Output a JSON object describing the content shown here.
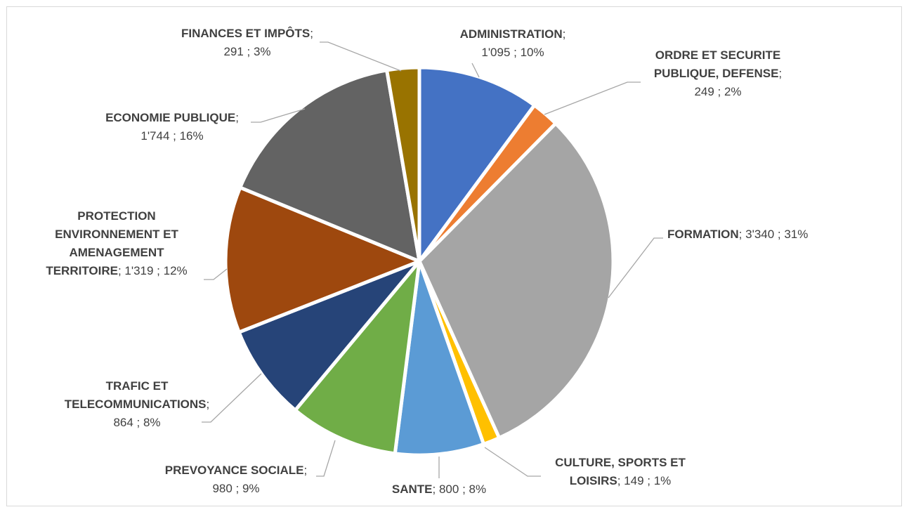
{
  "chart_data": {
    "type": "pie",
    "title": "",
    "slices": [
      {
        "name": "ADMINISTRATION",
        "value": 1095,
        "value_label": "1'095",
        "pct_label": "10%",
        "color": "#4472C4"
      },
      {
        "name": "ORDRE ET SECURITE PUBLIQUE, DEFENSE",
        "value": 249,
        "value_label": "249",
        "pct_label": "2%",
        "color": "#ED7D31"
      },
      {
        "name": "FORMATION",
        "value": 3340,
        "value_label": "3'340",
        "pct_label": "31%",
        "color": "#A5A5A5"
      },
      {
        "name": "CULTURE, SPORTS ET LOISIRS",
        "value": 149,
        "value_label": "149",
        "pct_label": "1%",
        "color": "#FFC000"
      },
      {
        "name": "SANTE",
        "value": 800,
        "value_label": "800",
        "pct_label": "8%",
        "color": "#5B9BD5"
      },
      {
        "name": "PREVOYANCE SOCIALE",
        "value": 980,
        "value_label": "980",
        "pct_label": "9%",
        "color": "#70AD47"
      },
      {
        "name": "TRAFIC ET TELECOMMUNICATIONS",
        "value": 864,
        "value_label": "864",
        "pct_label": "8%",
        "color": "#264478"
      },
      {
        "name": "PROTECTION ENVIRONNEMENT ET AMENAGEMENT TERRITOIRE",
        "value": 1319,
        "value_label": "1'319",
        "pct_label": "12%",
        "color": "#9E480E"
      },
      {
        "name": "ECONOMIE PUBLIQUE",
        "value": 1744,
        "value_label": "1'744",
        "pct_label": "16%",
        "color": "#636363"
      },
      {
        "name": "FINANCES ET IMPÔTS",
        "value": 291,
        "value_label": "291",
        "pct_label": "3%",
        "color": "#997300"
      }
    ]
  }
}
